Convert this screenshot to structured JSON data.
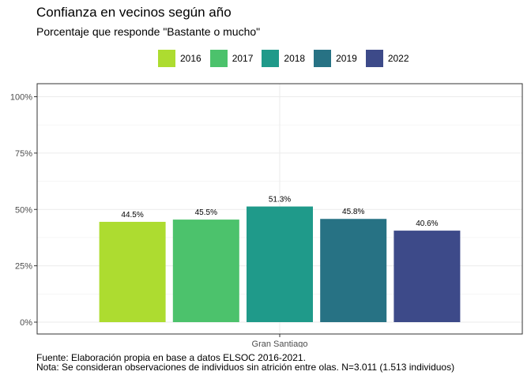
{
  "chart_data": {
    "type": "bar",
    "title": "Confianza en vecinos según año",
    "subtitle": "Porcentaje que responde \"Bastante o mucho\"",
    "categories": [
      "Gran Santiago"
    ],
    "series": [
      {
        "name": "2016",
        "values": [
          44.5
        ],
        "label": "44.5%",
        "color": "#addc30"
      },
      {
        "name": "2017",
        "values": [
          45.5
        ],
        "label": "45.5%",
        "color": "#4cc26c"
      },
      {
        "name": "2018",
        "values": [
          51.3
        ],
        "label": "51.3%",
        "color": "#1f9a8a"
      },
      {
        "name": "2019",
        "values": [
          45.8
        ],
        "label": "45.8%",
        "color": "#277284"
      },
      {
        "name": "2022",
        "values": [
          40.6
        ],
        "label": "40.6%",
        "color": "#3d4a89"
      }
    ],
    "ylim": [
      0,
      100
    ],
    "yticks": [
      0,
      25,
      50,
      75,
      100
    ],
    "ytick_labels": [
      "0%",
      "25%",
      "50%",
      "75%",
      "100%"
    ],
    "xlabel": "",
    "ylabel": "",
    "legend_position": "top",
    "grid": true,
    "caption_lines": [
      "Fuente: Elaboración propia en base a datos ELSOC 2016-2021.",
      "Nota: Se consideran observaciones de individuos sin atrición entre olas. N=3.011 (1.513 individuos)"
    ]
  }
}
